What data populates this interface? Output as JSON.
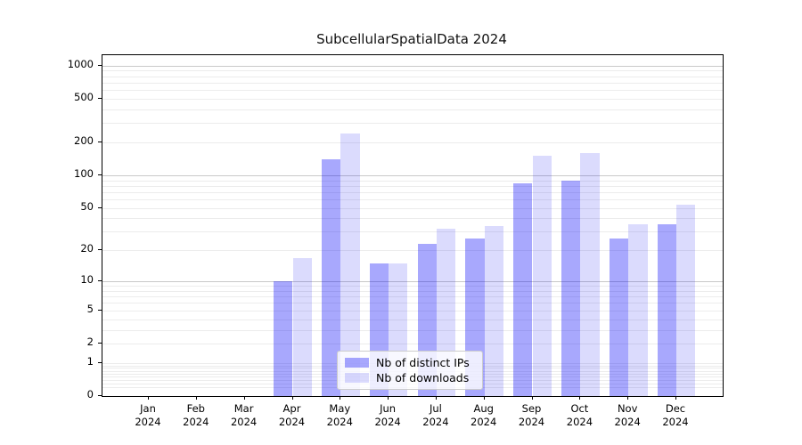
{
  "chart_data": {
    "type": "bar",
    "title": "SubcellularSpatialData 2024",
    "categories": [
      "Jan",
      "Feb",
      "Mar",
      "Apr",
      "May",
      "Jun",
      "Jul",
      "Aug",
      "Sep",
      "Oct",
      "Nov",
      "Dec"
    ],
    "year": "2024",
    "series": [
      {
        "name": "Nb of distinct IPs",
        "color": "rgba(0,0,250,0.34)",
        "color_hex": "#aaa9fa",
        "values": [
          0,
          0,
          0,
          10,
          140,
          15,
          23,
          26,
          85,
          90,
          26,
          35
        ]
      },
      {
        "name": "Nb of downloads",
        "color": "rgba(0,0,240,0.14)",
        "color_hex": "#dcdcf9",
        "values": [
          0,
          0,
          0,
          17,
          240,
          15,
          32,
          34,
          150,
          160,
          35,
          54
        ]
      }
    ],
    "y_axis": {
      "scale": "log10(1+x)",
      "ticks": [
        0,
        1,
        2,
        5,
        10,
        20,
        50,
        100,
        200,
        500,
        1000
      ],
      "major_gridlines": [
        10,
        100,
        1000
      ],
      "ylim": [
        0,
        1000
      ]
    },
    "x_axis": {
      "tick_label_lines": 2
    },
    "legend": {
      "position": "lower center"
    },
    "grid": "both"
  }
}
